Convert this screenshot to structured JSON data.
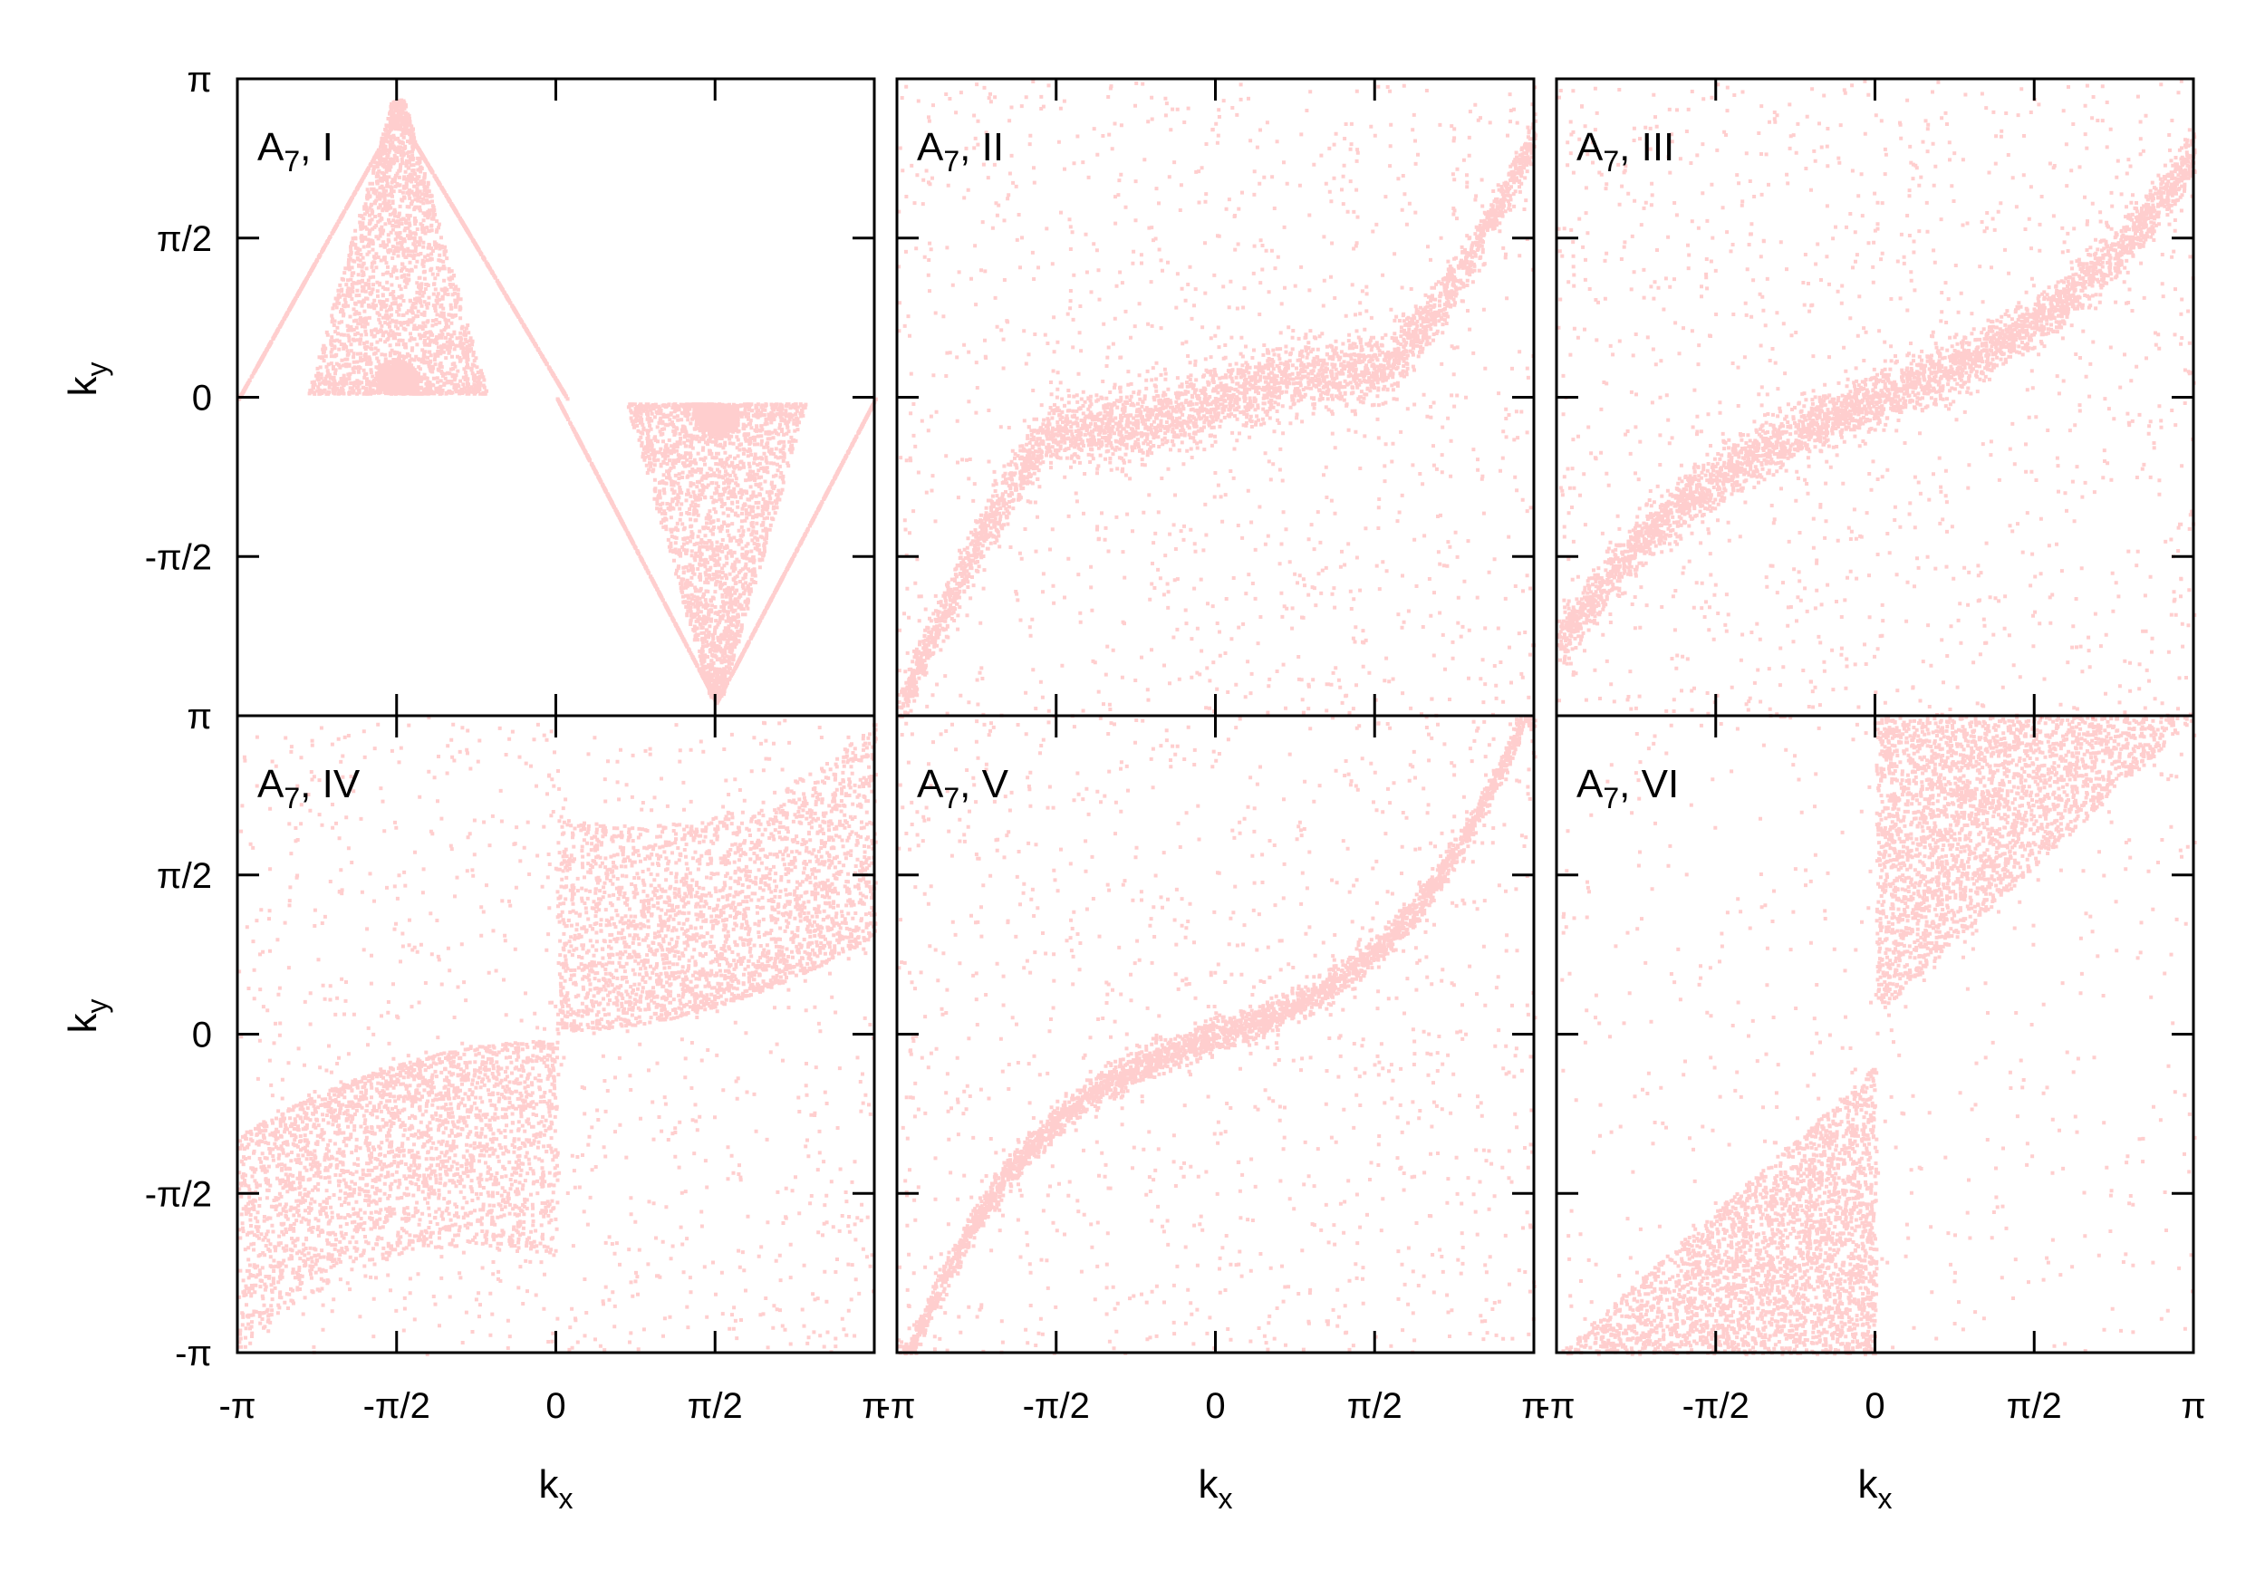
{
  "chart_data": [
    {
      "type": "scatter",
      "panel_label": {
        "base": "A",
        "subscript": "7",
        "suffix": ", I"
      },
      "xlim": [
        "-π",
        "π"
      ],
      "ylim": [
        "-π",
        "π"
      ],
      "color": "#ff2020",
      "pattern": "Two triangular (V-shaped) clusters: one centred near (-π/2, +0.3) spanning kx ≈ -2.5..-0.8, ky ≈ 0..π; a mirrored one centred near (π/2, -0.3) spanning kx ≈ 0.8..2.5, ky ≈ -π..0, joined by diagonal lines through the corners"
    },
    {
      "type": "scatter",
      "panel_label": {
        "base": "A",
        "subscript": "7",
        "suffix": ", II"
      },
      "xlim": [
        "-π",
        "π"
      ],
      "ylim": [
        "-π",
        "π"
      ],
      "color": "#ff2020",
      "pattern": "Dense band from (-π, -π) rising to a plateau near ky ≈ -0.3 around kx ≈ -π/2, crossing zero, plateau near ky ≈ 0.3 around kx ≈ π/2 and rising to (π, π/2+); diffuse background points"
    },
    {
      "type": "scatter",
      "panel_label": {
        "base": "A",
        "subscript": "7",
        "suffix": ", III"
      },
      "xlim": [
        "-π",
        "π"
      ],
      "ylim": [
        "-π",
        "π"
      ],
      "color": "#ff2020",
      "pattern": "S-shaped dense band from (-π, -π) to (π, π) with flattening near the origin; many curved streaks radiating from centre"
    },
    {
      "type": "scatter",
      "panel_label": {
        "base": "A",
        "subscript": "7",
        "suffix": ", IV"
      },
      "xlim": [
        "-π",
        "π"
      ],
      "ylim": [
        "-π",
        "π"
      ],
      "color": "#ff2020",
      "pattern": "Two dense lobes: one in the third quadrant bounded by the diagonal, one in the first quadrant between kx ≈ 0 and π; sparse points elsewhere"
    },
    {
      "type": "scatter",
      "panel_label": {
        "base": "A",
        "subscript": "7",
        "suffix": ", V"
      },
      "xlim": [
        "-π",
        "π"
      ],
      "ylim": [
        "-π",
        "π"
      ],
      "color": "#ff2020",
      "pattern": "Narrow S-shaped band from (-π, -π) through origin to (π, π); sparse background"
    },
    {
      "type": "scatter",
      "panel_label": {
        "base": "A",
        "subscript": "7",
        "suffix": ", VI"
      },
      "xlim": [
        "-π",
        "π"
      ],
      "ylim": [
        "-π",
        "π"
      ],
      "color": "#ff2020",
      "pattern": "Two triangles: lower-left triangle with vertices (-π, -π), (0, -π), (0, -0.3); upper-right triangle with vertices (0, 0.2), (0, π), (π, π)"
    }
  ],
  "axes": {
    "xlabel": {
      "base": "k",
      "subscript": "x"
    },
    "ylabel": {
      "base": "k",
      "subscript": "y"
    },
    "xticks": [
      "-π",
      "-π/2",
      "0",
      "π/2",
      "π"
    ],
    "yticks": [
      "π",
      "π/2",
      "0",
      "-π/2",
      "-π"
    ]
  }
}
